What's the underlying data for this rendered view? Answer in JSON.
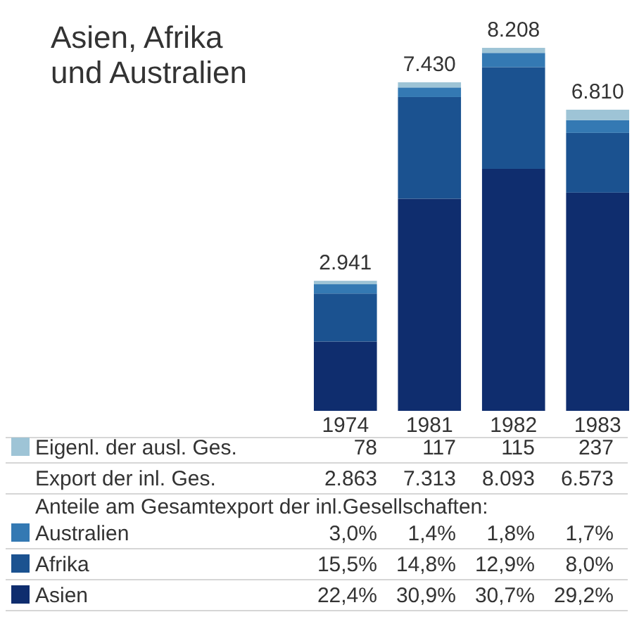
{
  "chart_data": [
    {
      "type": "bar",
      "stacked": true,
      "title": "Asien, Afrika\nund Australien",
      "categories": [
        "1974",
        "1981",
        "1982",
        "1983"
      ],
      "series": [
        {
          "name": "Asien",
          "color": "#0f2d6e",
          "values": [
            1568,
            4798,
            5473,
            4934
          ]
        },
        {
          "name": "Afrika",
          "color": "#1b5290",
          "values": [
            1085,
            2298,
            2300,
            1352
          ]
        },
        {
          "name": "Australien",
          "color": "#3479b3",
          "values": [
            210,
            217,
            321,
            287
          ]
        },
        {
          "name": "Eigenl. der ausl. Ges.",
          "color": "#9ec4d6",
          "values": [
            78,
            117,
            115,
            237
          ],
          "value_labels": [
            "78",
            "117",
            "115",
            "237"
          ]
        }
      ],
      "totals": [
        "2.941",
        "7.430",
        "8.208",
        "6.810"
      ],
      "annotations": [
        "Export der inl. Ges.",
        "2.863",
        "7.313",
        "8.093",
        "6.573"
      ],
      "legend": "bottom"
    },
    {
      "type": "other",
      "title": "Anteile am Gesamtexport der inl.Gesellschaften:",
      "annotations": [
        "3,0%",
        "1,4%",
        "1,8%",
        "1,7%",
        "15,5%",
        "14,8%",
        "12,9%",
        "8,0%",
        "22,4%",
        "30,9%",
        "30,7%",
        "29,2%"
      ]
    }
  ]
}
